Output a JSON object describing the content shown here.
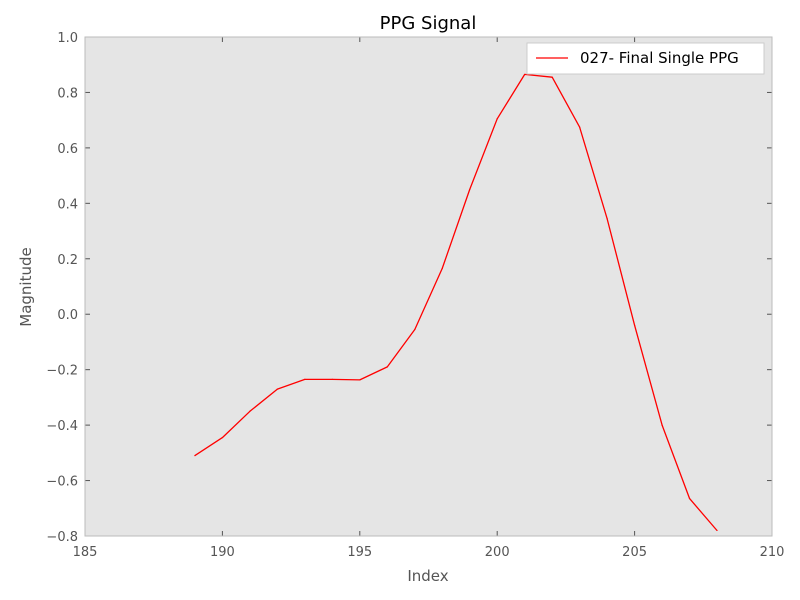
{
  "chart_data": {
    "type": "line",
    "title": "PPG Signal",
    "xlabel": "Index",
    "ylabel": "Magnitude",
    "xlim": [
      185,
      210
    ],
    "ylim": [
      -0.8,
      1.0
    ],
    "xticks": [
      "185",
      "190",
      "195",
      "200",
      "205",
      "210"
    ],
    "yticks": [
      "−0.8",
      "−0.6",
      "−0.4",
      "−0.2",
      "0.0",
      "0.2",
      "0.4",
      "0.6",
      "0.8",
      "1.0"
    ],
    "grid": false,
    "legend_position": "top-right",
    "plot_background": "#e5e5e5",
    "series": [
      {
        "name": "027- Final Single PPG",
        "color": "#ff0000",
        "x": [
          189,
          190,
          191,
          192,
          193,
          194,
          195,
          196,
          197,
          198,
          199,
          200,
          201,
          202,
          203,
          204,
          205,
          206,
          207,
          208
        ],
        "y": [
          -0.51,
          -0.445,
          -0.35,
          -0.27,
          -0.235,
          -0.235,
          -0.237,
          -0.19,
          -0.055,
          0.165,
          0.45,
          0.705,
          0.865,
          0.855,
          0.675,
          0.345,
          -0.04,
          -0.4,
          -0.665,
          -0.78
        ]
      }
    ]
  }
}
